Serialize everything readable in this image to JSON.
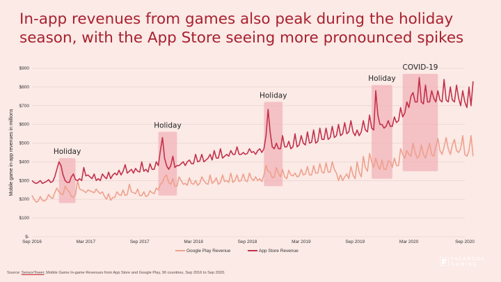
{
  "title": "In-app revenues from games also peak during the holiday season, with the App Store seeing more pronounced spikes",
  "source": {
    "prefix": "Source: ",
    "link": "SensorTower",
    "rest": ", Mobile Game In-game Revenues from App Store and Google Play, 90 countries, Sep 2016 to Sep 2020."
  },
  "brand": {
    "line1": "FACEBOOK",
    "line2": "GAMING"
  },
  "colors": {
    "app_store": "#c2304a",
    "google_play": "#eea08c",
    "highlight": "#f2b3b8",
    "grid": "#e8cdcd",
    "title": "#a8202f"
  },
  "chart_data": {
    "type": "line",
    "ylabel": "Mobile game in-app revenues in millions",
    "xlabel": "",
    "ylim": [
      0,
      900
    ],
    "yticks": [
      "$-",
      "$100",
      "$200",
      "$300",
      "$400",
      "$500",
      "$600",
      "$700",
      "$800",
      "$900"
    ],
    "ytick_values": [
      0,
      100,
      200,
      300,
      400,
      500,
      600,
      700,
      800,
      900
    ],
    "xlim_weeks": [
      0,
      209
    ],
    "xticks": [
      {
        "label": "Sep 2016",
        "week": 0
      },
      {
        "label": "Mar 2017",
        "week": 26
      },
      {
        "label": "Sep 2017",
        "week": 52
      },
      {
        "label": "Mar 2018",
        "week": 78
      },
      {
        "label": "Sep 2018",
        "week": 104
      },
      {
        "label": "Mar 2019",
        "week": 130
      },
      {
        "label": "Sep 2019",
        "week": 156
      },
      {
        "label": "Mar 2020",
        "week": 182
      },
      {
        "label": "Sep 2020",
        "week": 209
      }
    ],
    "grid": true,
    "legend_placement": "bottom-center",
    "series": [
      {
        "name": "Google Play Revenue",
        "values": [
          220,
          200,
          185,
          190,
          215,
          195,
          190,
          200,
          225,
          210,
          205,
          235,
          260,
          240,
          230,
          225,
          270,
          250,
          240,
          215,
          210,
          225,
          300,
          255,
          250,
          245,
          235,
          250,
          245,
          240,
          235,
          255,
          240,
          230,
          240,
          215,
          200,
          230,
          195,
          210,
          210,
          240,
          225,
          220,
          250,
          220,
          225,
          280,
          240,
          235,
          230,
          255,
          220,
          220,
          240,
          215,
          220,
          245,
          235,
          230,
          260,
          250,
          280,
          290,
          320,
          330,
          290,
          280,
          310,
          270,
          270,
          320,
          300,
          280,
          285,
          275,
          315,
          285,
          280,
          300,
          275,
          285,
          320,
          300,
          285,
          280,
          330,
          285,
          295,
          315,
          280,
          290,
          330,
          295,
          300,
          290,
          340,
          290,
          300,
          330,
          295,
          300,
          335,
          300,
          295,
          340,
          310,
          300,
          320,
          300,
          310,
          295,
          330,
          380,
          350,
          345,
          315,
          320,
          370,
          340,
          320,
          360,
          320,
          310,
          355,
          330,
          325,
          340,
          320,
          325,
          360,
          330,
          335,
          375,
          330,
          330,
          380,
          340,
          340,
          390,
          345,
          340,
          395,
          345,
          345,
          400,
          360,
          340,
          300,
          330,
          300,
          320,
          335,
          310,
          375,
          330,
          310,
          400,
          345,
          320,
          430,
          370,
          350,
          445,
          400,
          370,
          420,
          380,
          360,
          410,
          360,
          360,
          405,
          400,
          370,
          420,
          380,
          380,
          470,
          440,
          420,
          460,
          440,
          430,
          500,
          450,
          420,
          430,
          490,
          440,
          420,
          460,
          500,
          440,
          430,
          480,
          525,
          460,
          440,
          480,
          530,
          470,
          440,
          490,
          520,
          460,
          450,
          470,
          540,
          440,
          430,
          460,
          540,
          430
        ],
        "color": "#eea08c"
      },
      {
        "name": "App Store Revenue",
        "values": [
          300,
          290,
          285,
          290,
          300,
          285,
          290,
          295,
          305,
          290,
          295,
          320,
          360,
          400,
          380,
          330,
          300,
          290,
          290,
          320,
          335,
          305,
          300,
          310,
          300,
          370,
          325,
          330,
          320,
          310,
          335,
          300,
          310,
          300,
          335,
          320,
          310,
          345,
          310,
          330,
          340,
          330,
          355,
          330,
          350,
          385,
          340,
          350,
          360,
          340,
          365,
          350,
          345,
          400,
          350,
          360,
          345,
          390,
          360,
          360,
          400,
          380,
          460,
          530,
          420,
          380,
          360,
          380,
          430,
          370,
          380,
          380,
          390,
          400,
          380,
          400,
          410,
          390,
          390,
          440,
          400,
          405,
          440,
          400,
          410,
          420,
          440,
          410,
          460,
          420,
          420,
          470,
          420,
          430,
          440,
          430,
          460,
          440,
          440,
          480,
          440,
          440,
          450,
          440,
          445,
          470,
          450,
          455,
          440,
          460,
          470,
          450,
          470,
          540,
          680,
          560,
          480,
          470,
          500,
          470,
          470,
          540,
          480,
          480,
          510,
          470,
          480,
          550,
          480,
          490,
          540,
          500,
          490,
          560,
          500,
          505,
          570,
          500,
          510,
          580,
          520,
          520,
          580,
          520,
          530,
          590,
          530,
          540,
          600,
          540,
          550,
          610,
          550,
          560,
          620,
          560,
          540,
          570,
          540,
          560,
          620,
          570,
          560,
          650,
          580,
          570,
          780,
          650,
          600,
          600,
          580,
          590,
          620,
          590,
          590,
          640,
          610,
          620,
          690,
          640,
          660,
          720,
          690,
          750,
          770,
          720,
          720,
          850,
          720,
          710,
          810,
          720,
          720,
          780,
          740,
          720,
          780,
          730,
          720,
          840,
          730,
          720,
          800,
          730,
          720,
          810,
          740,
          700,
          780,
          720,
          690,
          800,
          700,
          830
        ],
        "color": "#c2304a"
      }
    ],
    "annotations": [
      {
        "label": "Holiday",
        "week_start": 13,
        "week_end": 21,
        "y_low": 180,
        "y_high": 420
      },
      {
        "label": "Holiday",
        "week_start": 61,
        "week_end": 70,
        "y_low": 220,
        "y_high": 560
      },
      {
        "label": "Holiday",
        "week_start": 112,
        "week_end": 121,
        "y_low": 270,
        "y_high": 720
      },
      {
        "label": "Holiday",
        "week_start": 164,
        "week_end": 174,
        "y_low": 310,
        "y_high": 810
      },
      {
        "label": "COVID-19",
        "week_start": 179,
        "week_end": 196,
        "y_low": 350,
        "y_high": 870
      }
    ]
  }
}
